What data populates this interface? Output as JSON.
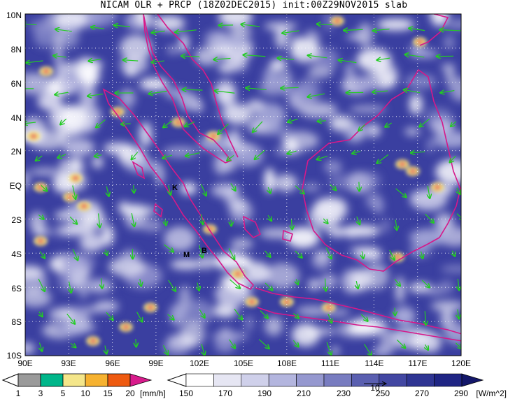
{
  "title": "NICAM OLR + PRCP (18Z02DEC2015) init:00Z29NOV2015 slab",
  "map": {
    "lat_labels": [
      "10N",
      "8N",
      "6N",
      "4N",
      "2N",
      "EQ",
      "2S",
      "4S",
      "6S",
      "8S",
      "10S"
    ],
    "lon_labels": [
      "90E",
      "93E",
      "96E",
      "99E",
      "102E",
      "105E",
      "108E",
      "111E",
      "114E",
      "117E",
      "120E"
    ],
    "markers": [
      {
        "id": "K",
        "label": "K"
      },
      {
        "id": "M",
        "label": "M"
      },
      {
        "id": "B",
        "label": "B"
      }
    ],
    "colors": {
      "coast": "#d6198a",
      "wind": "#22cc22",
      "cloud": "#ffffff",
      "clear": "#3a3fa0"
    }
  },
  "precip_colorbar": {
    "labels": [
      "1",
      "3",
      "5",
      "10",
      "15",
      "20"
    ],
    "unit": "[mm/h]",
    "colors": [
      "#9a9a9a",
      "#00b68a",
      "#f4e68a",
      "#f6b230",
      "#ee5a10",
      "#d81b8c"
    ]
  },
  "olr_colorbar": {
    "labels": [
      "150",
      "170",
      "190",
      "210",
      "230",
      "250",
      "270",
      "290"
    ],
    "unit": "[W/m^2]",
    "vector_label": "10",
    "colors": [
      "#ffffff",
      "#e6e6f3",
      "#cfd0ea",
      "#b3b5de",
      "#9598cf",
      "#787cc0",
      "#5a5fb0",
      "#4247a2",
      "#2f3593",
      "#1f2584",
      "#13176a"
    ]
  }
}
